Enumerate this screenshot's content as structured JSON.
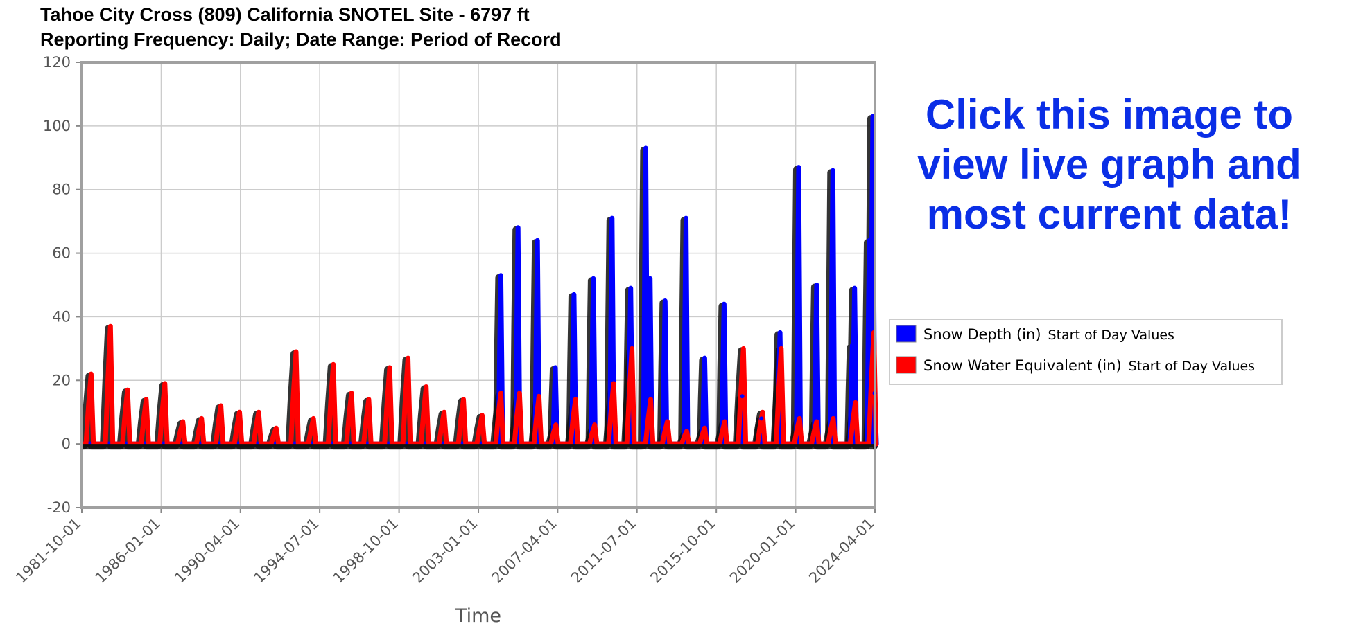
{
  "header": {
    "title_line1": "Tahoe City Cross (809) California SNOTEL Site - 6797 ft",
    "title_line2": "Reporting Frequency: Daily; Date Range: Period of Record"
  },
  "call_to_action": {
    "line1": "Click this image to",
    "line2": "view live graph and",
    "line3": "most current data!"
  },
  "colors": {
    "snow_depth": "#0000ff",
    "swe": "#ff0000",
    "cta": "#0a2ee6",
    "grid": "#cccccc",
    "frame": "#a0a0a0"
  },
  "chart_data": {
    "type": "line",
    "xlabel": "Time",
    "ylabel": "",
    "ylim": [
      -20,
      120
    ],
    "yticks": [
      "120",
      "100",
      "80",
      "60",
      "40",
      "20",
      "0",
      "-20"
    ],
    "xticks": [
      "1981-10-01",
      "1986-01-01",
      "1990-04-01",
      "1994-07-01",
      "1998-10-01",
      "2003-01-01",
      "2007-04-01",
      "2011-07-01",
      "2015-10-01",
      "2020-01-01",
      "2024-04-01"
    ],
    "xlim": [
      "1981-10-01",
      "2024-04-01"
    ],
    "grid": true,
    "legend_position": "right",
    "legend": [
      {
        "name": "Snow Depth (in)",
        "sub": "Start of Day Values",
        "color": "#0000ff"
      },
      {
        "name": "Snow Water Equivalent (in)",
        "sub": "Start of Day Values",
        "color": "#ff0000"
      }
    ],
    "series": [
      {
        "name": "Snow Depth (in)",
        "peaks": [
          {
            "date": "2004-03-15",
            "value": 53
          },
          {
            "date": "2005-02-15",
            "value": 68
          },
          {
            "date": "2006-03-01",
            "value": 64
          },
          {
            "date": "2007-02-15",
            "value": 24
          },
          {
            "date": "2008-02-15",
            "value": 47
          },
          {
            "date": "2009-03-01",
            "value": 52
          },
          {
            "date": "2010-03-01",
            "value": 71
          },
          {
            "date": "2011-03-01",
            "value": 49
          },
          {
            "date": "2012-03-15",
            "value": 52
          },
          {
            "date": "2013-01-01",
            "value": 45
          },
          {
            "date": "2014-02-15",
            "value": 71
          },
          {
            "date": "2011-12-20",
            "value": 93
          },
          {
            "date": "2015-02-15",
            "value": 27
          },
          {
            "date": "2016-03-01",
            "value": 44
          },
          {
            "date": "2017-02-20",
            "value": 15
          },
          {
            "date": "2018-03-01",
            "value": 8
          },
          {
            "date": "2019-03-01",
            "value": 35
          },
          {
            "date": "2020-03-01",
            "value": 87
          },
          {
            "date": "2021-02-15",
            "value": 50
          },
          {
            "date": "2021-12-30",
            "value": 86
          },
          {
            "date": "2023-01-15",
            "value": 31
          },
          {
            "date": "2023-03-01",
            "value": 49
          },
          {
            "date": "2023-12-15",
            "value": 64
          },
          {
            "date": "2024-02-20",
            "value": 103
          },
          {
            "date": "2024-03-25",
            "value": 16
          }
        ]
      },
      {
        "name": "Snow Water Equivalent (in)",
        "peaks": [
          {
            "date": "1982-04-01",
            "value": 22
          },
          {
            "date": "1983-04-15",
            "value": 37
          },
          {
            "date": "1984-03-15",
            "value": 17
          },
          {
            "date": "1985-03-15",
            "value": 14
          },
          {
            "date": "1986-03-15",
            "value": 19
          },
          {
            "date": "1987-03-01",
            "value": 7
          },
          {
            "date": "1988-03-01",
            "value": 8
          },
          {
            "date": "1989-03-15",
            "value": 12
          },
          {
            "date": "1990-03-15",
            "value": 10
          },
          {
            "date": "1991-03-25",
            "value": 10
          },
          {
            "date": "1992-03-01",
            "value": 5
          },
          {
            "date": "1993-03-25",
            "value": 29
          },
          {
            "date": "1994-03-01",
            "value": 8
          },
          {
            "date": "1995-03-25",
            "value": 25
          },
          {
            "date": "1996-03-15",
            "value": 16
          },
          {
            "date": "1997-02-15",
            "value": 14
          },
          {
            "date": "1998-04-01",
            "value": 24
          },
          {
            "date": "1999-03-25",
            "value": 27
          },
          {
            "date": "2000-03-15",
            "value": 18
          },
          {
            "date": "2001-03-01",
            "value": 10
          },
          {
            "date": "2002-03-15",
            "value": 14
          },
          {
            "date": "2003-03-15",
            "value": 9
          },
          {
            "date": "2004-03-15",
            "value": 16
          },
          {
            "date": "2005-03-15",
            "value": 16
          },
          {
            "date": "2006-04-01",
            "value": 15
          },
          {
            "date": "2007-02-25",
            "value": 6
          },
          {
            "date": "2008-03-15",
            "value": 14
          },
          {
            "date": "2009-03-25",
            "value": 6
          },
          {
            "date": "2010-04-01",
            "value": 19
          },
          {
            "date": "2011-03-25",
            "value": 30
          },
          {
            "date": "2012-03-25",
            "value": 14
          },
          {
            "date": "2013-02-15",
            "value": 7
          },
          {
            "date": "2014-03-01",
            "value": 4
          },
          {
            "date": "2015-02-15",
            "value": 5
          },
          {
            "date": "2016-03-15",
            "value": 7
          },
          {
            "date": "2017-03-15",
            "value": 30
          },
          {
            "date": "2018-03-25",
            "value": 10
          },
          {
            "date": "2019-03-25",
            "value": 30
          },
          {
            "date": "2020-03-15",
            "value": 8
          },
          {
            "date": "2021-02-15",
            "value": 7
          },
          {
            "date": "2022-01-05",
            "value": 8
          },
          {
            "date": "2023-03-15",
            "value": 13
          },
          {
            "date": "2024-03-10",
            "value": 35
          }
        ]
      }
    ]
  }
}
